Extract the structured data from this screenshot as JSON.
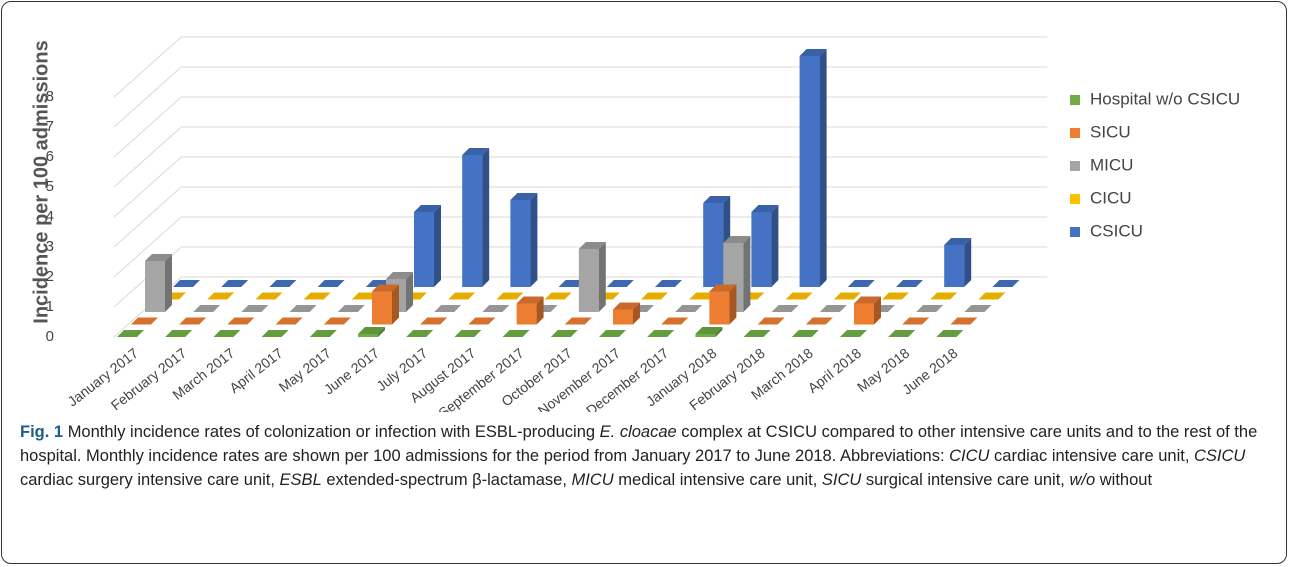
{
  "chart_data": {
    "type": "bar3d",
    "y_axis_label": "Incidence per 100 admissions",
    "categories": [
      "January 2017",
      "February 2017",
      "March 2017",
      "April 2017",
      "May 2017",
      "June 2017",
      "July 2017",
      "August 2017",
      "September 2017",
      "October 2017",
      "November 2017",
      "December 2017",
      "January 2018",
      "February 2018",
      "March 2018",
      "April 2018",
      "May 2018",
      "June 2018"
    ],
    "series": [
      {
        "name": "Hospital w/o CSICU",
        "color": "#70ad47",
        "values": [
          0,
          0,
          0,
          0,
          0,
          0.1,
          0,
          0,
          0,
          0,
          0,
          0,
          0.1,
          0,
          0,
          0,
          0,
          0
        ]
      },
      {
        "name": "SICU",
        "color": "#ed7d31",
        "values": [
          0,
          0,
          0,
          0,
          0,
          1.1,
          0,
          0,
          0.7,
          0,
          0.5,
          0,
          1.1,
          0,
          0,
          0.7,
          0,
          0
        ]
      },
      {
        "name": "MICU",
        "color": "#a5a5a5",
        "values": [
          1.7,
          0,
          0,
          0,
          0,
          1.1,
          0,
          0,
          0,
          2.1,
          0,
          0,
          2.3,
          0,
          0,
          0,
          0,
          0
        ]
      },
      {
        "name": "CICU",
        "color": "#ffc000",
        "values": [
          0,
          0,
          0,
          0,
          0,
          0,
          0,
          0,
          0,
          0,
          0,
          0,
          0,
          0,
          0,
          0,
          0,
          0
        ]
      },
      {
        "name": "CSICU",
        "color": "#4472c4",
        "values": [
          0,
          0,
          0,
          0,
          0,
          2.5,
          4.4,
          2.9,
          0,
          0,
          0,
          2.8,
          2.5,
          7.7,
          0,
          0,
          1.4,
          0
        ]
      }
    ],
    "ylim": [
      0,
      8
    ],
    "yticks": [
      0,
      1,
      2,
      3,
      4,
      5,
      6,
      7,
      8
    ],
    "grid": true,
    "legend": "right"
  },
  "caption": {
    "label": "Fig. 1",
    "parts": [
      "Monthly incidence rates of colonization or infection with ESBL-producing ",
      "E. cloacae",
      " complex at CSICU compared to other intensive care units and to the rest of the hospital. Monthly incidence rates are shown per 100 admissions for the period from January 2017 to June 2018. Abbreviations: ",
      "CICU",
      " cardiac intensive care unit, ",
      "CSICU",
      " cardiac surgery intensive care unit, ",
      "ESBL",
      " extended-spectrum β-lactamase, ",
      "MICU",
      " medical intensive care unit, ",
      "SICU",
      " surgical intensive care unit, ",
      "w/o",
      " without"
    ]
  }
}
